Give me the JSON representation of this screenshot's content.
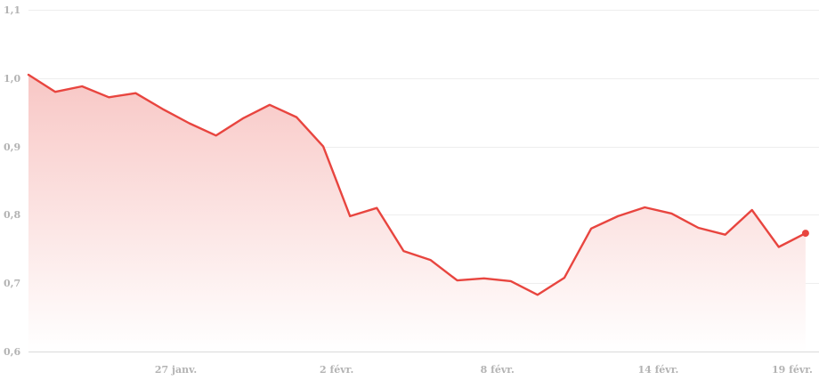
{
  "colors": {
    "line": "#e8453f",
    "fill_top": "#f8c7c5",
    "fill_bottom": "#ffffff",
    "grid": "#eeeeee",
    "tick_text": "#b3b3b3",
    "marker": "#e8453f"
  },
  "chart_data": {
    "type": "area",
    "title": "",
    "xlabel": "",
    "ylabel": "",
    "ylim": [
      0.6,
      1.1
    ],
    "grid": "horizontal",
    "y_ticks": [
      0.6,
      0.7,
      0.8,
      0.9,
      1.0,
      1.1
    ],
    "y_tick_labels": [
      "0,6",
      "0,7",
      "0,8",
      "0,9",
      "1,0",
      "1,1"
    ],
    "x_ticks": [
      {
        "date": "2024-01-27",
        "label": "27 janv."
      },
      {
        "date": "2024-02-02",
        "label": "2 févr."
      },
      {
        "date": "2024-02-08",
        "label": "8 févr."
      },
      {
        "date": "2024-02-14",
        "label": "14 févr."
      },
      {
        "date": "2024-02-19",
        "label": "19 févr."
      }
    ],
    "x_range": [
      "2024-01-21T12:00",
      "2024-02-20"
    ],
    "series": [
      {
        "points": [
          [
            "2024-01-21T12:00",
            1.005
          ],
          [
            "2024-01-22T12:00",
            0.98
          ],
          [
            "2024-01-23T12:00",
            0.988
          ],
          [
            "2024-01-24T12:00",
            0.972
          ],
          [
            "2024-01-25T12:00",
            0.978
          ],
          [
            "2024-01-26T12:00",
            0.955
          ],
          [
            "2024-01-27T12:00",
            0.934
          ],
          [
            "2024-01-28T12:00",
            0.916
          ],
          [
            "2024-01-29T12:00",
            0.941
          ],
          [
            "2024-01-30T12:00",
            0.961
          ],
          [
            "2024-01-31T12:00",
            0.943
          ],
          [
            "2024-02-01T12:00",
            0.9
          ],
          [
            "2024-02-02T12:00",
            0.798
          ],
          [
            "2024-02-03T12:00",
            0.81
          ],
          [
            "2024-02-04T12:00",
            0.747
          ],
          [
            "2024-02-05T12:00",
            0.734
          ],
          [
            "2024-02-06T12:00",
            0.704
          ],
          [
            "2024-02-07T12:00",
            0.707
          ],
          [
            "2024-02-08T12:00",
            0.703
          ],
          [
            "2024-02-09T12:00",
            0.683
          ],
          [
            "2024-02-10T12:00",
            0.708
          ],
          [
            "2024-02-11T12:00",
            0.78
          ],
          [
            "2024-02-12T12:00",
            0.798
          ],
          [
            "2024-02-13T12:00",
            0.811
          ],
          [
            "2024-02-14T12:00",
            0.802
          ],
          [
            "2024-02-15T12:00",
            0.781
          ],
          [
            "2024-02-16T12:00",
            0.771
          ],
          [
            "2024-02-17T12:00",
            0.807
          ],
          [
            "2024-02-18T12:00",
            0.753
          ],
          [
            "2024-02-19T12:00",
            0.773
          ]
        ]
      }
    ]
  }
}
